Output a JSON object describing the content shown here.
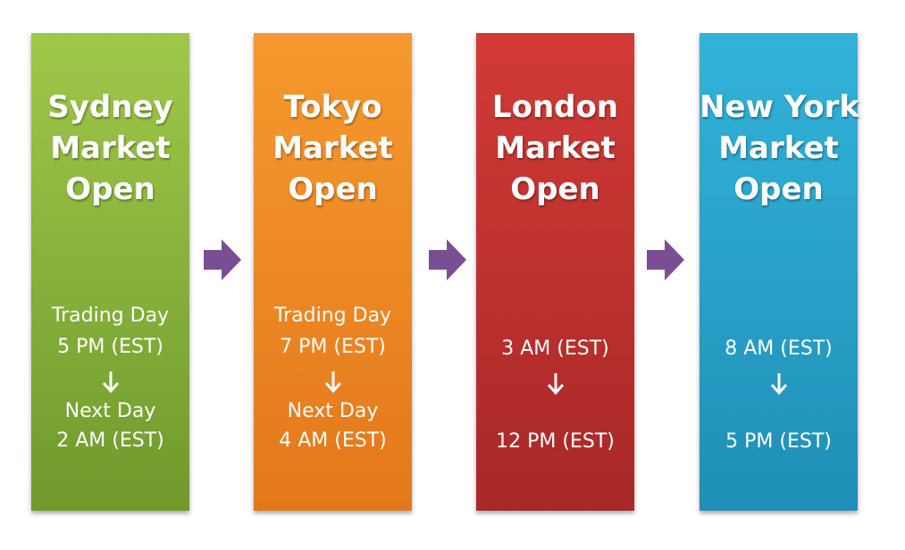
{
  "colors": {
    "sydney": "#86b23a",
    "tokyo": "#f08a24",
    "london": "#c93332",
    "newyork": "#2aa5cc",
    "arrow": "#7a4e95"
  },
  "icons": {
    "flow_arrow": "right-arrow-icon",
    "time_arrow": "down-arrow-icon"
  },
  "panels": [
    {
      "title": [
        "Sydney",
        "Market",
        "Open"
      ],
      "pre_start": "Trading Day",
      "start": "5 PM (EST)",
      "pre_end": "Next Day",
      "end": "2 AM (EST)"
    },
    {
      "title": [
        "Tokyo",
        "Market",
        "Open"
      ],
      "pre_start": "Trading Day",
      "start": "7 PM (EST)",
      "pre_end": "Next Day",
      "end": "4 AM (EST)"
    },
    {
      "title": [
        "London",
        "Market",
        "Open"
      ],
      "start": "3 AM (EST)",
      "end": "12 PM (EST)"
    },
    {
      "title": [
        "New York",
        "Market",
        "Open"
      ],
      "start": "8 AM (EST)",
      "end": "5 PM (EST)"
    }
  ]
}
